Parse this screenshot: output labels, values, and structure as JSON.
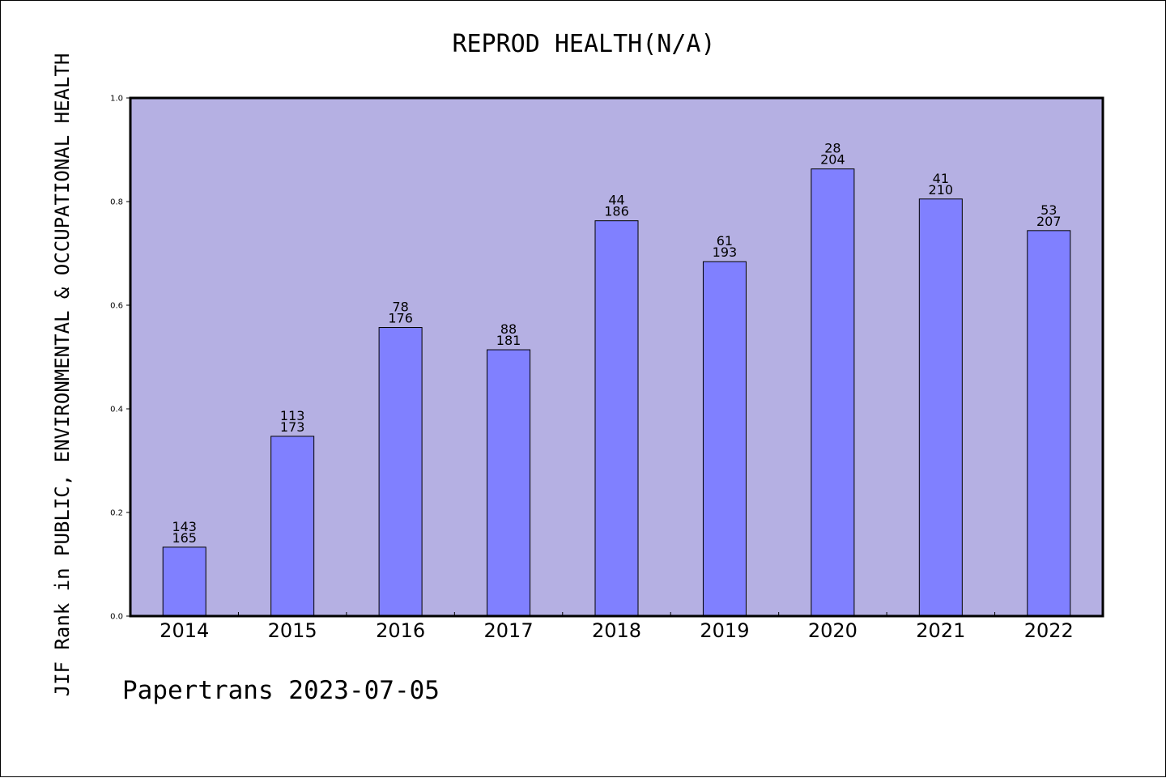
{
  "chart_data": {
    "type": "bar",
    "title": "REPROD HEALTH(N/A)",
    "ylabel": "JIF Rank in PUBLIC, ENVIRONMENTAL & OCCUPATIONAL HEALTH",
    "xlabel": "",
    "ylim": [
      0.0,
      1.0
    ],
    "yticks": [
      "0.0",
      "0.2",
      "0.4",
      "0.6",
      "0.8",
      "1.0"
    ],
    "categories": [
      "2014",
      "2015",
      "2016",
      "2017",
      "2018",
      "2019",
      "2020",
      "2021",
      "2022"
    ],
    "values": [
      0.133,
      0.347,
      0.557,
      0.514,
      0.763,
      0.684,
      0.863,
      0.805,
      0.744
    ],
    "rank": [
      143,
      113,
      78,
      88,
      44,
      61,
      28,
      41,
      53
    ],
    "total": [
      165,
      173,
      176,
      181,
      186,
      193,
      204,
      210,
      207
    ],
    "grid": false,
    "colors": {
      "plot_bg": "#b5b0e3",
      "bar": "#8080ff",
      "axis": "#000000"
    }
  },
  "footer": {
    "watermark": "Papertrans 2023-07-05"
  }
}
